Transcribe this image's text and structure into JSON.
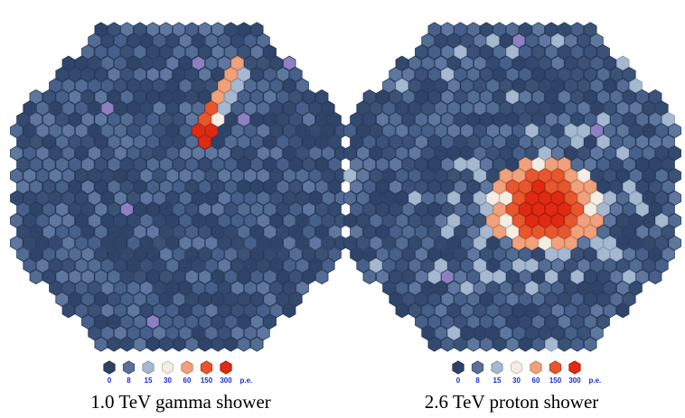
{
  "panels": [
    {
      "caption": "1.0 TeV gamma shower",
      "legend": [
        "0",
        "8",
        "15",
        "30",
        "60",
        "150",
        "300"
      ],
      "unit": "p.e."
    },
    {
      "caption": "2.6 TeV proton shower",
      "legend": [
        "0",
        "8",
        "15",
        "30",
        "60",
        "150",
        "300"
      ],
      "unit": "p.e."
    }
  ]
}
